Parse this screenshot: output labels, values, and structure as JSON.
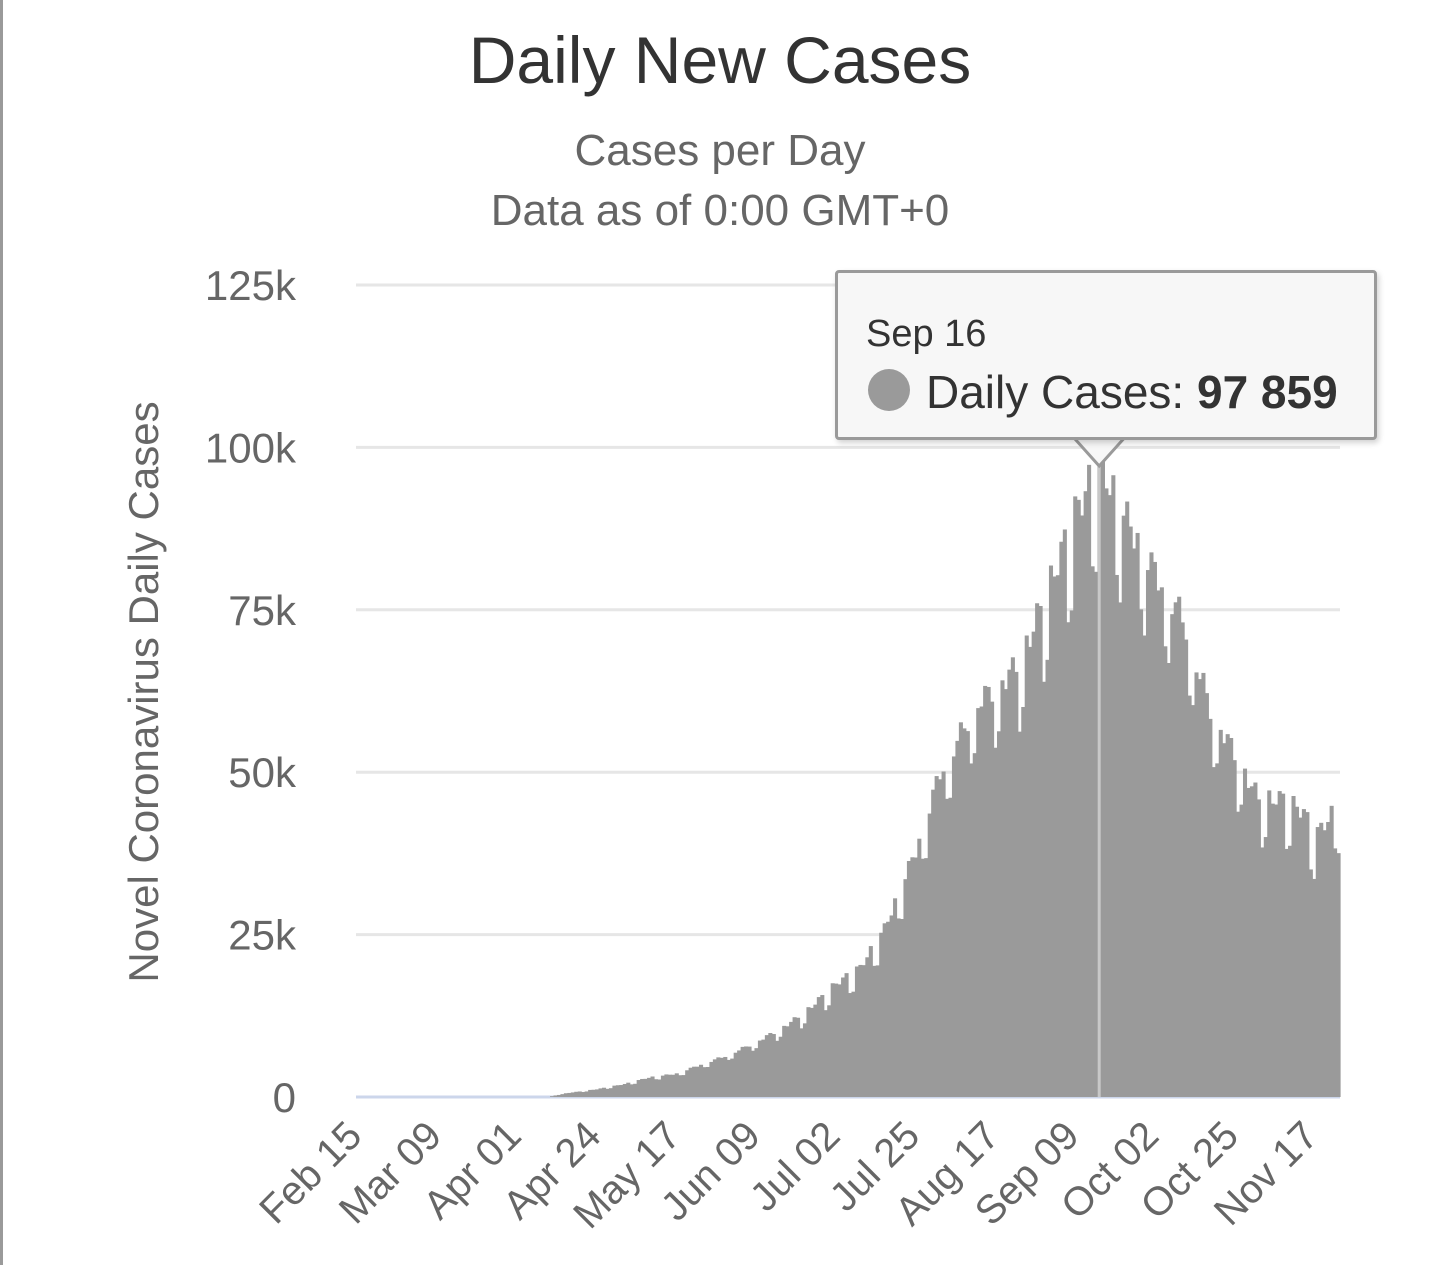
{
  "chart_data": {
    "type": "bar",
    "title": "Daily New Cases",
    "subtitle": [
      "Cases per Day",
      "Data as of 0:00 GMT+0"
    ],
    "ylabel": "Novel Coronavirus Daily Cases",
    "xlabel": "",
    "ylim": [
      0,
      125000
    ],
    "yticks": [
      0,
      25000,
      50000,
      75000,
      100000,
      125000
    ],
    "ytick_labels": [
      "0",
      "25k",
      "50k",
      "75k",
      "100k",
      "125k"
    ],
    "xtick_labels": [
      "Feb 15",
      "Mar 09",
      "Apr 01",
      "Apr 24",
      "May 17",
      "Jun 09",
      "Jul 02",
      "Jul 25",
      "Aug 17",
      "Sep 09",
      "Oct 02",
      "Oct 25",
      "Nov 17"
    ],
    "x_start": "Feb 15",
    "x_end": "Nov 24",
    "grid": true,
    "color": "#9a9a9a",
    "series": [
      {
        "name": "Daily Cases",
        "points": [
          [
            "Feb 15",
            0
          ],
          [
            "Mar 09",
            0
          ],
          [
            "Apr 01",
            0
          ],
          [
            "Apr 10",
            0
          ],
          [
            "Apr 14",
            500
          ],
          [
            "Apr 24",
            1200
          ],
          [
            "May 02",
            2000
          ],
          [
            "May 09",
            3000
          ],
          [
            "May 17",
            3600
          ],
          [
            "May 24",
            5000
          ],
          [
            "Jun 01",
            6500
          ],
          [
            "Jun 09",
            8500
          ],
          [
            "Jun 16",
            10500
          ],
          [
            "Jun 23",
            13000
          ],
          [
            "Jul 02",
            17500
          ],
          [
            "Jul 09",
            20000
          ],
          [
            "Jul 16",
            26000
          ],
          [
            "Jul 25",
            38000
          ],
          [
            "Aug 01",
            50000
          ],
          [
            "Aug 06",
            55000
          ],
          [
            "Aug 12",
            61000
          ],
          [
            "Aug 17",
            63000
          ],
          [
            "Aug 24",
            67000
          ],
          [
            "Sep 01",
            78000
          ],
          [
            "Sep 09",
            90000
          ],
          [
            "Sep 16",
            97859
          ],
          [
            "Sep 23",
            90000
          ],
          [
            "Oct 02",
            81000
          ],
          [
            "Oct 10",
            74000
          ],
          [
            "Oct 18",
            60000
          ],
          [
            "Oct 25",
            53000
          ],
          [
            "Nov 01",
            46000
          ],
          [
            "Nov 08",
            46000
          ],
          [
            "Nov 14",
            44000
          ],
          [
            "Nov 17",
            40000
          ],
          [
            "Nov 24",
            45000
          ]
        ]
      }
    ]
  },
  "tooltip": {
    "date": "Sep 16",
    "series_label": "Daily Cases:",
    "value_text": "97 859"
  }
}
